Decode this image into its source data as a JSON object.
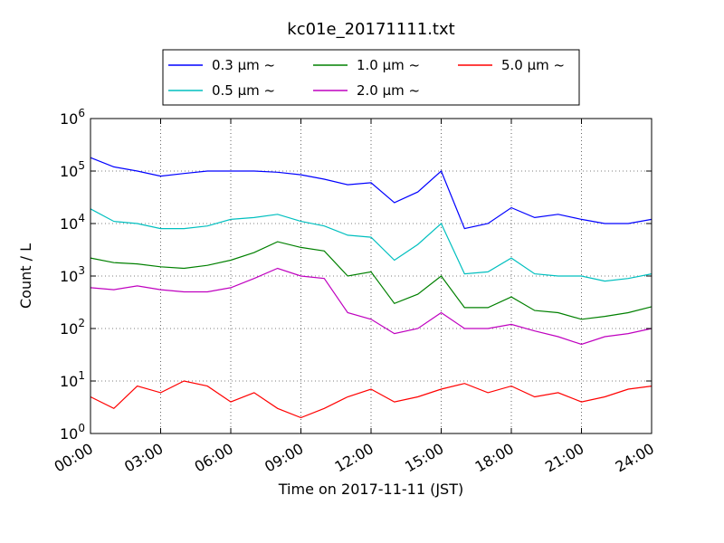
{
  "chart_data": {
    "type": "line",
    "title": "kc01e_20171111.txt",
    "xlabel": "Time on 2017-11-11 (JST)",
    "ylabel": "Count / L",
    "yscale": "log",
    "ylim": [
      1,
      1000000
    ],
    "xlim": [
      "00:00",
      "24:00"
    ],
    "grid": true,
    "legend_position": "top-center, above plot",
    "x_ticks": [
      "00:00",
      "03:00",
      "06:00",
      "09:00",
      "12:00",
      "15:00",
      "18:00",
      "21:00",
      "24:00"
    ],
    "y_ticks": [
      {
        "base": "10",
        "exp": "0"
      },
      {
        "base": "10",
        "exp": "1"
      },
      {
        "base": "10",
        "exp": "2"
      },
      {
        "base": "10",
        "exp": "3"
      },
      {
        "base": "10",
        "exp": "4"
      },
      {
        "base": "10",
        "exp": "5"
      },
      {
        "base": "10",
        "exp": "6"
      }
    ],
    "x_hours": [
      0,
      1,
      2,
      3,
      4,
      5,
      6,
      7,
      8,
      9,
      10,
      11,
      12,
      13,
      14,
      15,
      16,
      17,
      18,
      19,
      20,
      21,
      22,
      23,
      24
    ],
    "series": [
      {
        "name": "0.3 μm ~",
        "color": "#0000ff",
        "values": [
          180000,
          120000,
          100000,
          80000,
          90000,
          100000,
          100000,
          100000,
          95000,
          85000,
          70000,
          55000,
          60000,
          25000,
          40000,
          100000,
          8000,
          10000,
          20000,
          13000,
          15000,
          12000,
          10000,
          10000,
          12000
        ]
      },
      {
        "name": "0.5 μm ~",
        "color": "#00bfbf",
        "values": [
          19000,
          11000,
          10000,
          8000,
          8000,
          9000,
          12000,
          13000,
          15000,
          11000,
          9000,
          6000,
          5500,
          2000,
          4000,
          10000,
          1100,
          1200,
          2200,
          1100,
          1000,
          1000,
          800,
          900,
          1100
        ]
      },
      {
        "name": "1.0 μm ~",
        "color": "#008000",
        "values": [
          2200,
          1800,
          1700,
          1500,
          1400,
          1600,
          2000,
          2800,
          4500,
          3500,
          3000,
          1000,
          1200,
          300,
          450,
          1000,
          250,
          250,
          400,
          220,
          200,
          150,
          170,
          200,
          260
        ]
      },
      {
        "name": "2.0 μm ~",
        "color": "#bf00bf",
        "values": [
          600,
          550,
          650,
          550,
          500,
          500,
          600,
          900,
          1400,
          1000,
          900,
          200,
          150,
          80,
          100,
          200,
          100,
          100,
          120,
          90,
          70,
          50,
          70,
          80,
          100
        ]
      },
      {
        "name": "5.0 μm ~",
        "color": "#ff0000",
        "values": [
          5,
          3,
          8,
          6,
          10,
          8,
          4,
          6,
          3,
          2,
          3,
          5,
          7,
          4,
          5,
          7,
          9,
          6,
          8,
          5,
          6,
          4,
          5,
          7,
          8
        ]
      }
    ]
  }
}
